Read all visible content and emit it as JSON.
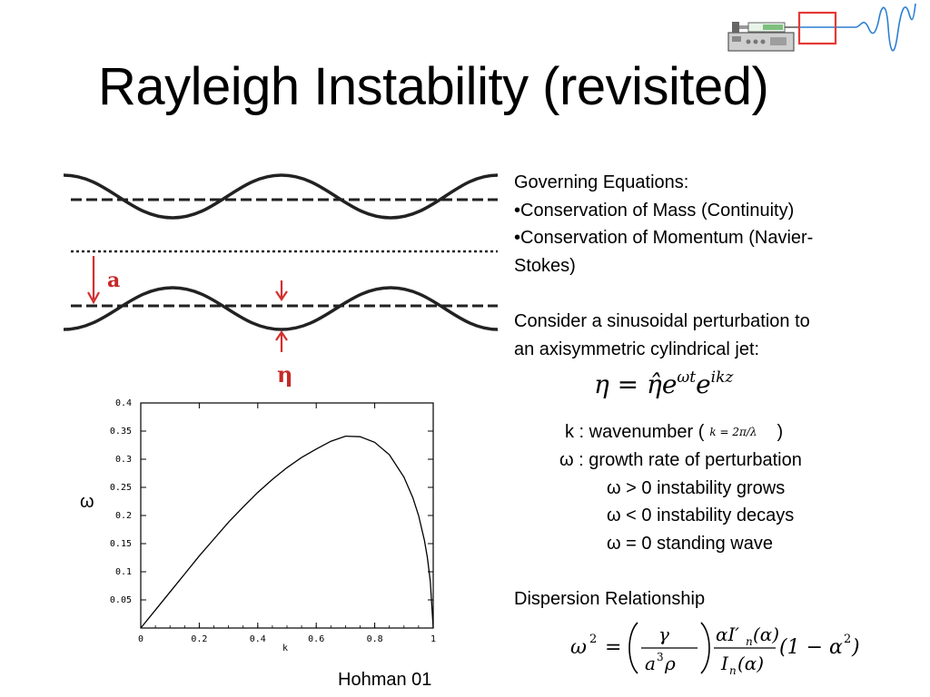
{
  "slide": {
    "title": "Rayleigh Instability (revisited)",
    "citation": "Hohman 01"
  },
  "diagram": {
    "label_a": "a",
    "label_eta": "η"
  },
  "plot": {
    "ylabel": "ω",
    "xlabel": "k",
    "x_ticks": [
      "0",
      "0.2",
      "0.4",
      "0.6",
      "0.8",
      "1"
    ],
    "y_ticks": [
      "0.05",
      "0.1",
      "0.15",
      "0.2",
      "0.25",
      "0.3",
      "0.35",
      "0.4"
    ]
  },
  "chart_data": {
    "type": "line",
    "title": "",
    "xlabel": "k",
    "ylabel": "ω",
    "xlim": [
      0,
      1
    ],
    "ylim": [
      0,
      0.4
    ],
    "series": [
      {
        "x": [
          0,
          0.05,
          0.1,
          0.15,
          0.2,
          0.25,
          0.3,
          0.35,
          0.4,
          0.45,
          0.5,
          0.55,
          0.6,
          0.65,
          0.7,
          0.75,
          0.8,
          0.85,
          0.9,
          0.93,
          0.95,
          0.97,
          0.98,
          0.99,
          1.0
        ],
        "y": [
          0,
          0.032,
          0.064,
          0.096,
          0.128,
          0.158,
          0.188,
          0.215,
          0.241,
          0.264,
          0.285,
          0.303,
          0.318,
          0.332,
          0.341,
          0.34,
          0.33,
          0.308,
          0.268,
          0.232,
          0.2,
          0.156,
          0.125,
          0.083,
          0.0
        ]
      }
    ]
  },
  "text": {
    "governing": "Governing Equations:",
    "mass": "•Conservation of Mass (Continuity)",
    "momentum": "•Conservation of Momentum (Navier-",
    "momentum2": "Stokes)",
    "consider1": "Consider a sinusoidal perturbation to",
    "consider2": "an axisymmetric cylindrical jet:",
    "k_def_prefix": "k : wavenumber (",
    "k_def_formula": "k = 2π/λ",
    "k_def_suffix": ")",
    "omega_def": "ω : growth rate of perturbation",
    "omega_pos": "ω > 0  instability grows",
    "omega_neg": "ω < 0  instability decays",
    "omega_zero": "ω = 0  standing wave",
    "dispersion": "Dispersion Relationship"
  },
  "equations": {
    "eta_lhs": "η = η̂e",
    "eta_exp1": "ωt",
    "eta_e2": "e",
    "eta_exp2": "ikz",
    "disp_lhs": "ω",
    "disp_lhs_exp": "2",
    "disp_eq": "=",
    "disp_gamma": "γ",
    "disp_a3rho": "a",
    "disp_a3rho_exp": "3",
    "disp_rho": "ρ",
    "disp_num": "αI′",
    "disp_num_sub": "n",
    "disp_num_arg": "(α)",
    "disp_den": "I",
    "disp_den_sub": "n",
    "disp_den_arg": "(α)",
    "disp_tail": "(1 − α",
    "disp_tail_exp": "2",
    "disp_tail_close": ")"
  }
}
